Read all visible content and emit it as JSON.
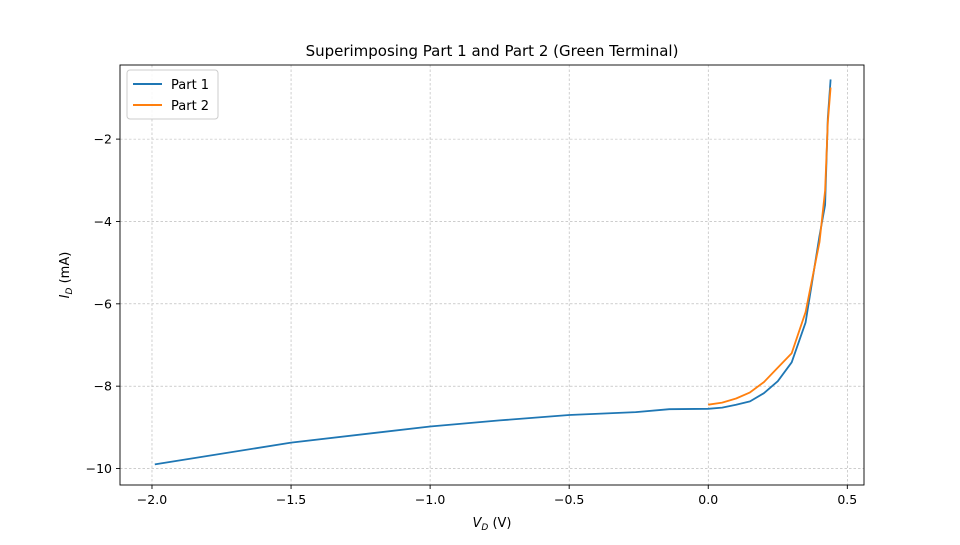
{
  "chart_data": {
    "type": "line",
    "title": "Superimposing Part 1 and Part 2 (Green Terminal)",
    "xlabel": {
      "symbol": "V",
      "sub": "D",
      "unit": " (V)"
    },
    "ylabel": {
      "symbol": "I",
      "sub": "D",
      "unit": " (mA)"
    },
    "xlim": [
      -2.115,
      0.56
    ],
    "ylim": [
      -10.4,
      -0.2
    ],
    "x_ticks": [
      -2.0,
      -1.5,
      -1.0,
      -0.5,
      0.0,
      0.5
    ],
    "x_tick_labels": [
      "−2.0",
      "−1.5",
      "−1.0",
      "−0.5",
      "0.0",
      "0.5"
    ],
    "y_ticks": [
      -10,
      -8,
      -6,
      -4,
      -2
    ],
    "y_tick_labels": [
      "−10",
      "−8",
      "−6",
      "−4",
      "−2"
    ],
    "grid": true,
    "legend_position": "top-left",
    "series": [
      {
        "name": "Part 1",
        "color": "#1f77b4",
        "x": [
          -1.99,
          -1.5,
          -1.0,
          -0.75,
          -0.5,
          -0.26,
          -0.14,
          0.0,
          0.05,
          0.1,
          0.15,
          0.2,
          0.25,
          0.3,
          0.35,
          0.4,
          0.42,
          0.43,
          0.44
        ],
        "y": [
          -9.9,
          -9.37,
          -8.98,
          -8.83,
          -8.7,
          -8.63,
          -8.56,
          -8.55,
          -8.52,
          -8.45,
          -8.37,
          -8.17,
          -7.88,
          -7.42,
          -6.45,
          -4.35,
          -3.6,
          -1.5,
          -0.55
        ]
      },
      {
        "name": "Part 2",
        "color": "#ff7f0e",
        "x": [
          0.0,
          0.05,
          0.1,
          0.15,
          0.2,
          0.25,
          0.3,
          0.35,
          0.4,
          0.42,
          0.43,
          0.44
        ],
        "y": [
          -8.45,
          -8.4,
          -8.3,
          -8.15,
          -7.9,
          -7.55,
          -7.2,
          -6.2,
          -4.5,
          -3.25,
          -1.6,
          -0.75
        ]
      }
    ]
  }
}
